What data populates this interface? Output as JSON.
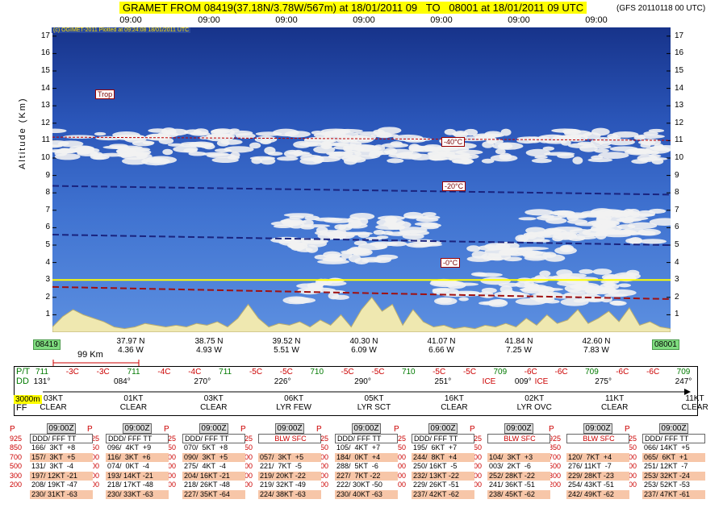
{
  "header": {
    "title": "GRAMET FROM 08419(37.18N/3.78W/567m) at 18/01/2011 09   TO   08001 at 18/01/2011 09 UTC",
    "model": "(GFS 20110118 00 UTC)",
    "top_times": [
      "09:00",
      "09:00",
      "09:00",
      "09:00",
      "09:00",
      "09:00",
      "09:00"
    ]
  },
  "plot": {
    "copyright": "(c) OGIMET-2011 Plotted at 09:24:08 18/01/2011 UTC",
    "y_axis_title": "Altitude (Km)",
    "colors": {
      "sky_top": "#17338a",
      "sky_bottom": "#5c8fe0",
      "terrain": "#efe8b0",
      "isotherm": "#1a237e",
      "freezing": "#a01010",
      "trop": "#c00000",
      "cloud": "#f2f2f2",
      "level_line": "#ffff00"
    },
    "trop_label": "Trop",
    "isotherm_labels": [
      "-40°C",
      "-20°C",
      "-0°C"
    ]
  },
  "chart_data": {
    "type": "area",
    "title": "GRAMET FROM 08419(37.18N/3.78W/567m) at 18/01/2011 09   TO   08001 at 18/01/2011 09 UTC",
    "xlabel": "",
    "ylabel": "Altitude (Km)",
    "ylim": [
      0,
      17.5
    ],
    "y_ticks": [
      1,
      2,
      3,
      4,
      5,
      6,
      7,
      8,
      9,
      10,
      11,
      12,
      13,
      14,
      15,
      16,
      17
    ],
    "stations": {
      "start": "08419",
      "end": "08001"
    },
    "x_positions": [
      {
        "lat": "37.97 N",
        "lon": "4.36 W"
      },
      {
        "lat": "38.75 N",
        "lon": "4.93 W"
      },
      {
        "lat": "39.52 N",
        "lon": "5.51 W"
      },
      {
        "lat": "40.30 N",
        "lon": "6.09 W"
      },
      {
        "lat": "41.07 N",
        "lon": "6.66 W"
      },
      {
        "lat": "41.84 N",
        "lon": "7.25 W"
      },
      {
        "lat": "42.60 N",
        "lon": "7.83 W"
      }
    ],
    "isotherms": [
      {
        "name": "-40°C",
        "from_km": 8.4,
        "to_km": 7.9
      },
      {
        "name": "-20°C",
        "from_km": 5.6,
        "to_km": 5.0
      },
      {
        "name": "-0°C",
        "from_km": 2.6,
        "to_km": 1.9
      }
    ],
    "tropopause_km": 11.2,
    "flight_level_km": 3.0,
    "terrain_km": [
      0.3,
      0.9,
      1.3,
      1.0,
      0.8,
      0.6,
      0.3,
      0.2,
      0.3,
      0.5,
      0.4,
      0.3,
      0.4,
      0.3,
      0.5,
      0.4,
      0.6,
      0.3,
      0.8,
      1.6,
      0.8,
      0.3,
      0.5,
      0.4,
      0.6,
      0.3,
      0.7,
      0.4,
      1.0,
      0.3,
      1.3,
      2.0,
      1.2,
      1.6,
      0.4,
      1.3,
      0.6,
      0.3,
      0.4,
      0.2,
      0.3,
      0.2,
      0.4,
      0.3,
      0.5,
      0.3,
      0.8,
      0.4,
      1.0,
      0.5,
      0.7,
      1.3,
      0.5,
      0.8,
      1.2,
      0.6,
      1.4,
      0.4,
      0.6,
      0.3,
      0.2
    ]
  },
  "wind_strip": {
    "pt_label": "P/T",
    "dd_label": "DD",
    "ff_label": "FF",
    "ff_level": "3000m",
    "pt_values": [
      "711",
      "-3C",
      "-3C",
      "711",
      "-4C",
      "-4C",
      "711",
      "-5C",
      "-5C",
      "710",
      "-5C",
      "-5C",
      "710",
      "-5C",
      "-5C",
      "709",
      "-6C",
      "-6C",
      "709",
      "-6C",
      "-6C",
      "709"
    ],
    "pt_colors": [
      "#007a00",
      "#c00",
      "#c00",
      "#007a00",
      "#c00",
      "#c00",
      "#007a00",
      "#c00",
      "#c00",
      "#007a00",
      "#c00",
      "#c00",
      "#007a00",
      "#c00",
      "#c00",
      "#007a00",
      "#c00",
      "#c00",
      "#007a00",
      "#c00",
      "#c00",
      "#007a00"
    ],
    "dd_values": [
      "131°",
      "084°",
      "270°",
      "226°",
      "290°",
      "251°",
      "009°",
      "275°",
      "247°"
    ],
    "ice_labels": [
      "ICE",
      "ICE"
    ],
    "ff_values": [
      {
        "speed": "03KT",
        "sky": "CLEAR"
      },
      {
        "speed": "01KT",
        "sky": "CLEAR"
      },
      {
        "speed": "03KT",
        "sky": "CLEAR"
      },
      {
        "speed": "06KT",
        "sky": "LYR FEW"
      },
      {
        "speed": "05KT",
        "sky": "LYR SCT"
      },
      {
        "speed": "16KT",
        "sky": "CLEAR"
      },
      {
        "speed": "02KT",
        "sky": "LYR OVC"
      },
      {
        "speed": "11KT",
        "sky": "CLEAR"
      },
      {
        "speed": "11KT",
        "sky": "CLEAR"
      }
    ],
    "scale": "99 Km"
  },
  "pressure_levels": [
    "925",
    "850",
    "700",
    "500",
    "300",
    "200"
  ],
  "p_label": "P",
  "soundings": [
    {
      "time": "09:00Z",
      "header": "DDD/ FFF TT",
      "lines": [
        "166/  3KT  +8",
        "157/  3KT  +5",
        "131/  3KT  -4",
        "197/ 12KT -21",
        "208/ 19KT -47",
        "230/ 31KT -63"
      ]
    },
    {
      "time": "09:00Z",
      "header": "DDD/ FFF TT",
      "lines": [
        "096/  4KT  +9",
        "116/  3KT  +6",
        "074/  0KT  -4",
        "193/ 14KT -21",
        "218/ 17KT -48",
        "230/ 33KT -63"
      ]
    },
    {
      "time": "09:00Z",
      "header": "DDD/ FFF TT",
      "lines": [
        "070/  5KT  +8",
        "090/  3KT  +5",
        "275/  4KT  -4",
        "204/ 16KT -21",
        "218/ 26KT -48",
        "227/ 35KT -64"
      ]
    },
    {
      "time": "09:00Z",
      "header": "BLW SFC",
      "lines": [
        "",
        "057/  3KT  +5",
        "221/  7KT  -5",
        "219/ 20KT -22",
        "219/ 32KT -49",
        "224/ 38KT -63"
      ]
    },
    {
      "time": "09:00Z",
      "header": "DDD/ FFF TT",
      "lines": [
        "105/  4KT  +7",
        "184/  0KT  +4",
        "288/  5KT  -6",
        "227/  7KT -22",
        "222/ 30KT -50",
        "230/ 40KT -63"
      ]
    },
    {
      "time": "09:00Z",
      "header": "DDD/ FFF TT",
      "lines": [
        "195/  6KT  +7",
        "244/  8KT  +4",
        "250/ 16KT  -5",
        "232/ 13KT -22",
        "229/ 26KT -51",
        "237/ 42KT -62"
      ]
    },
    {
      "time": "09:00Z",
      "header": "BLW SFC",
      "lines": [
        "",
        "104/  3KT  +3",
        "003/  2KT  -6",
        "252/ 28KT -22",
        "241/ 36KT -51",
        "238/ 45KT -62"
      ]
    },
    {
      "time": "09:00Z",
      "header": "BLW SFC",
      "lines": [
        "",
        "120/  7KT  +4",
        "276/ 11KT  -7",
        "229/ 28KT -23",
        "254/ 43KT -51",
        "242/ 49KT -62"
      ]
    },
    {
      "time": "09:00Z",
      "header": "DDD/ FFF TT",
      "lines": [
        "066/ 14KT  +5",
        "065/  6KT  +1",
        "251/ 12KT  -7",
        "253/ 32KT -24",
        "253/ 52KT -53",
        "237/ 47KT -61"
      ]
    }
  ]
}
